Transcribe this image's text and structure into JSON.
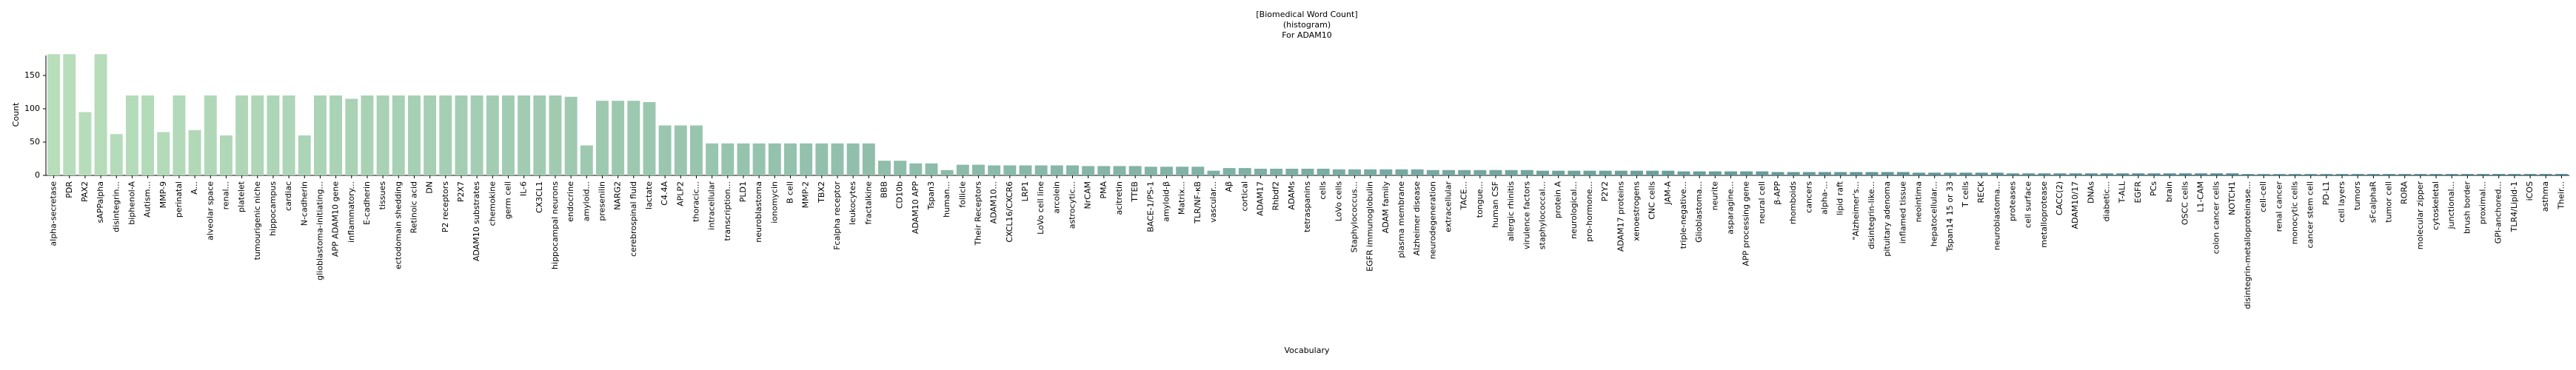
{
  "chart_data": {
    "type": "bar",
    "title": [
      "[Biomedical Word Count]",
      "(histogram)",
      "For ADAM10"
    ],
    "xlabel": "Vocabulary",
    "ylabel": "Count",
    "palette": [
      "#b8debb",
      "#3e7d8b"
    ],
    "ylim": [
      0,
      180
    ],
    "yticks": [
      0,
      50,
      100,
      150
    ],
    "grid": false,
    "categories": [
      "alpha-secretase",
      "PDR",
      "PAX2",
      "sAPPalpha",
      "disintegrin...",
      "biphenol-A",
      "Autism...",
      "MMP-9",
      "perinatal",
      "A...",
      "alveolar space",
      "renal...",
      "platelet",
      "tumourigenic niche",
      "hippocampus",
      "cardiac",
      "N-cadherin",
      "glioblastoma-initiating...",
      "APP ADAM10 gene",
      "inflammatory...",
      "E-cadherin",
      "tissues",
      "ectodomain shedding",
      "Retinoic acid",
      "DN",
      "P2 receptors",
      "P2X7",
      "ADAM10 substrates",
      "chemokine",
      "germ cell",
      "IL-6",
      "CX3CL1",
      "hippocampal neurons",
      "endocrine",
      "amyloid...",
      "presenilin",
      "NARG2",
      "cerebrospinal fluid",
      "lactate",
      "C4.4A",
      "APLP2",
      "thoracic...",
      "intracellular",
      "transcription...",
      "PLD1",
      "neuroblastoma",
      "ionomycin",
      "B cell",
      "MMP-2",
      "TBX2",
      "Fcalpha receptor",
      "leukocytes",
      "fractalkine",
      "BBB",
      "CD10b",
      "ADAM10 APP",
      "Tspan3",
      "human...",
      "follicle",
      "Their Receptors",
      "ADAM10...",
      "CXCL16/CXCR6",
      "LRP1",
      "LoVo cell line",
      "arcolein",
      "astrocytic...",
      "NrCAM",
      "PMA",
      "acitretin",
      "TTEB",
      "BACE-1/PS-1",
      "amyloid-β",
      "Matrix...",
      "TLR/NF-κB",
      "vascular...",
      "Aβ",
      "cortical",
      "ADAM17",
      "Rhbdf2",
      "ADAMs",
      "tetraspanins",
      "cells",
      "LoVo cells",
      "Staphylococcus...",
      "EGFR immunoglobulin",
      "ADAM family",
      "plasma membrane",
      "Alzheimer disease",
      "neurodegeneration",
      "extracellular",
      "TACE...",
      "tongue...",
      "human CSF",
      "allergic rhinitis",
      "virulence factors",
      "staphylococcal...",
      "protein A",
      "neurological...",
      "pro-hormone...",
      "P2Y2",
      "ADAM17 proteins",
      "xenoestrogens",
      "CNC cells",
      "JAM-A",
      "triple-negative...",
      "Glioblastoma...",
      "neurite",
      "asparagine...",
      "APP processing gene",
      "neural cell",
      "β-APP",
      "rhomboids",
      "cancers",
      "alpha-...",
      "lipid raft",
      "\"Alzheimer's...",
      "disintegrin-like...",
      "pituitary adenoma",
      "inflamed tissue",
      "neointima",
      "hepatocellular...",
      "Tspan14 15 or 33",
      "T cells",
      "RECK",
      "neuroblastoma...",
      "proteases",
      "cell surface",
      "metalloprotease",
      "CACC(2)",
      "ADAM10/17",
      "DNAs",
      "diabetic...",
      "T-ALL",
      "EGFR",
      "PCs",
      "brain",
      "OSCC cells",
      "L1-CAM",
      "colon cancer cells",
      "NOTCH1",
      "disintegrin-metalloproteinase...",
      "cell-cell",
      "renal cancer",
      "monocytic cells",
      "cancer stem cell",
      "PD-L1",
      "cell layers",
      "tumors",
      "sFcalphaR",
      "tumor cell",
      "RORA",
      "molecular zipper",
      "cytoskeletal",
      "junctional...",
      "brush border",
      "proximal...",
      "GPI-anchored...",
      "TLR4/Lipid-1",
      "iCOS",
      "asthma",
      "Their..."
    ],
    "values": [
      182,
      182,
      95,
      182,
      62,
      120,
      120,
      65,
      120,
      68,
      120,
      60,
      120,
      120,
      120,
      120,
      60,
      120,
      120,
      115,
      120,
      120,
      120,
      120,
      120,
      120,
      120,
      120,
      120,
      120,
      120,
      120,
      120,
      118,
      45,
      112,
      112,
      112,
      110,
      75,
      75,
      75,
      48,
      48,
      48,
      48,
      48,
      48,
      48,
      48,
      48,
      48,
      48,
      22,
      22,
      18,
      18,
      8,
      16,
      16,
      15,
      15,
      15,
      15,
      15,
      15,
      14,
      14,
      14,
      14,
      13,
      13,
      13,
      13,
      7,
      11,
      11,
      10,
      10,
      10,
      10,
      10,
      9,
      9,
      9,
      9,
      9,
      9,
      8,
      8,
      8,
      8,
      8,
      8,
      8,
      7,
      7,
      7,
      7,
      7,
      7,
      7,
      7,
      7,
      6,
      6,
      6,
      6,
      6,
      6,
      5,
      5,
      5,
      5,
      5,
      5,
      5,
      5,
      5,
      4,
      4,
      4,
      4,
      4,
      4,
      3,
      3,
      3,
      3,
      3,
      3,
      3,
      3,
      3,
      3,
      3,
      3,
      3,
      3,
      3,
      2,
      2,
      2,
      2,
      2,
      2,
      2,
      2,
      2,
      2,
      2,
      2,
      2,
      2,
      2,
      2,
      2,
      2,
      2,
      2,
      2
    ]
  }
}
